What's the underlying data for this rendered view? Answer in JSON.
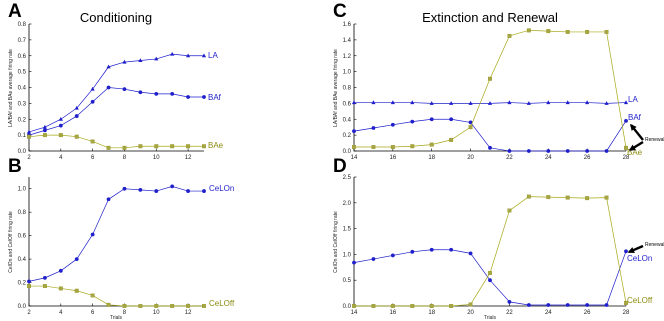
{
  "colors": {
    "blue": "#1f1fcc",
    "olive": "#a7a718",
    "olive_label": "#8c8c10",
    "olive_marker": "#a6a646",
    "axis": "#000000"
  },
  "chart_data": [
    {
      "id": "A",
      "letter": "A",
      "type": "line",
      "title": "Conditioning",
      "xlabel": "",
      "ylabel": "LA/BAf and BAe average firing rate",
      "xlim": [
        2,
        13
      ],
      "ylim": [
        0,
        0.8
      ],
      "xticks": [
        2,
        4,
        6,
        8,
        10,
        12
      ],
      "yticks": [
        0,
        0.1,
        0.2,
        0.3,
        0.4,
        0.5,
        0.6,
        0.7,
        0.8
      ],
      "x": [
        2,
        3,
        4,
        5,
        6,
        7,
        8,
        9,
        10,
        11,
        12,
        13
      ],
      "series": [
        {
          "name": "LA",
          "color": "blue",
          "marker": "triangle",
          "values": [
            0.12,
            0.15,
            0.2,
            0.27,
            0.39,
            0.53,
            0.56,
            0.57,
            0.58,
            0.61,
            0.6,
            0.6
          ]
        },
        {
          "name": "BAf",
          "color": "blue",
          "marker": "circle",
          "values": [
            0.1,
            0.13,
            0.16,
            0.22,
            0.31,
            0.4,
            0.39,
            0.37,
            0.36,
            0.36,
            0.34,
            0.34
          ]
        },
        {
          "name": "BAe",
          "color": "olive",
          "marker": "square",
          "values": [
            0.09,
            0.1,
            0.1,
            0.09,
            0.06,
            0.02,
            0.02,
            0.03,
            0.03,
            0.03,
            0.03,
            0.03
          ]
        }
      ]
    },
    {
      "id": "B",
      "letter": "B",
      "type": "line",
      "title": "",
      "xlabel": "Trials",
      "ylabel": "CelOn and CelOff firing rate",
      "xlim": [
        2,
        13
      ],
      "ylim": [
        0,
        1.1
      ],
      "xticks": [
        2,
        4,
        6,
        8,
        10,
        12
      ],
      "yticks": [
        0,
        0.2,
        0.4,
        0.6,
        0.8,
        1.0
      ],
      "x": [
        2,
        3,
        4,
        5,
        6,
        7,
        8,
        9,
        10,
        11,
        12,
        13
      ],
      "series": [
        {
          "name": "CeLOn",
          "color": "blue",
          "marker": "circle",
          "values": [
            0.21,
            0.24,
            0.3,
            0.4,
            0.61,
            0.91,
            1.0,
            0.99,
            0.98,
            1.02,
            0.98,
            0.98
          ]
        },
        {
          "name": "CeLOff",
          "color": "olive",
          "marker": "square",
          "values": [
            0.17,
            0.17,
            0.15,
            0.13,
            0.09,
            0.01,
            0.0,
            0.0,
            0.0,
            0.0,
            0.0,
            0.0
          ]
        }
      ]
    },
    {
      "id": "C",
      "letter": "C",
      "type": "line",
      "title": "Extinction and Renewal",
      "xlabel": "",
      "ylabel": "LA/BAf and BAe average firing rate",
      "xlim": [
        14,
        28
      ],
      "ylim": [
        0,
        1.6
      ],
      "xticks": [
        14,
        16,
        18,
        20,
        22,
        24,
        26,
        28
      ],
      "yticks": [
        0,
        0.2,
        0.4,
        0.6,
        0.8,
        1.0,
        1.2,
        1.4,
        1.6
      ],
      "x": [
        14,
        15,
        16,
        17,
        18,
        19,
        20,
        21,
        22,
        23,
        24,
        25,
        26,
        27,
        28
      ],
      "annotation": "Renewal",
      "series": [
        {
          "name": "LA",
          "color": "blue",
          "marker": "triangle",
          "values": [
            0.61,
            0.61,
            0.61,
            0.61,
            0.6,
            0.6,
            0.6,
            0.6,
            0.61,
            0.6,
            0.61,
            0.61,
            0.61,
            0.6,
            0.61
          ]
        },
        {
          "name": "BAf",
          "color": "blue",
          "marker": "circle",
          "values": [
            0.25,
            0.29,
            0.33,
            0.37,
            0.4,
            0.4,
            0.36,
            0.04,
            0.0,
            0.0,
            0.0,
            0.0,
            0.0,
            0.0,
            0.38
          ]
        },
        {
          "name": "BAe",
          "color": "olive",
          "marker": "square",
          "values": [
            0.05,
            0.05,
            0.05,
            0.06,
            0.08,
            0.14,
            0.3,
            0.91,
            1.45,
            1.52,
            1.51,
            1.5,
            1.5,
            1.5,
            0.04
          ]
        }
      ]
    },
    {
      "id": "D",
      "letter": "D",
      "type": "line",
      "title": "",
      "xlabel": "Trials",
      "ylabel": "CelOn and CelOff firing rate",
      "xlim": [
        14,
        28
      ],
      "ylim": [
        0,
        2.5
      ],
      "xticks": [
        14,
        16,
        18,
        20,
        22,
        24,
        26,
        28
      ],
      "yticks": [
        0,
        0.5,
        1.0,
        1.5,
        2.0,
        2.5
      ],
      "x": [
        14,
        15,
        16,
        17,
        18,
        19,
        20,
        21,
        22,
        23,
        24,
        25,
        26,
        27,
        28
      ],
      "annotation": "Renewal",
      "series": [
        {
          "name": "CeLOn",
          "color": "blue",
          "marker": "circle",
          "values": [
            0.84,
            0.91,
            0.98,
            1.05,
            1.09,
            1.09,
            1.02,
            0.5,
            0.08,
            0.02,
            0.02,
            0.02,
            0.02,
            0.02,
            1.06
          ]
        },
        {
          "name": "CeLOff",
          "color": "olive",
          "marker": "square",
          "values": [
            0.0,
            0.0,
            0.0,
            0.0,
            0.0,
            0.0,
            0.03,
            0.64,
            1.85,
            2.12,
            2.11,
            2.1,
            2.09,
            2.1,
            0.06
          ]
        }
      ]
    }
  ]
}
